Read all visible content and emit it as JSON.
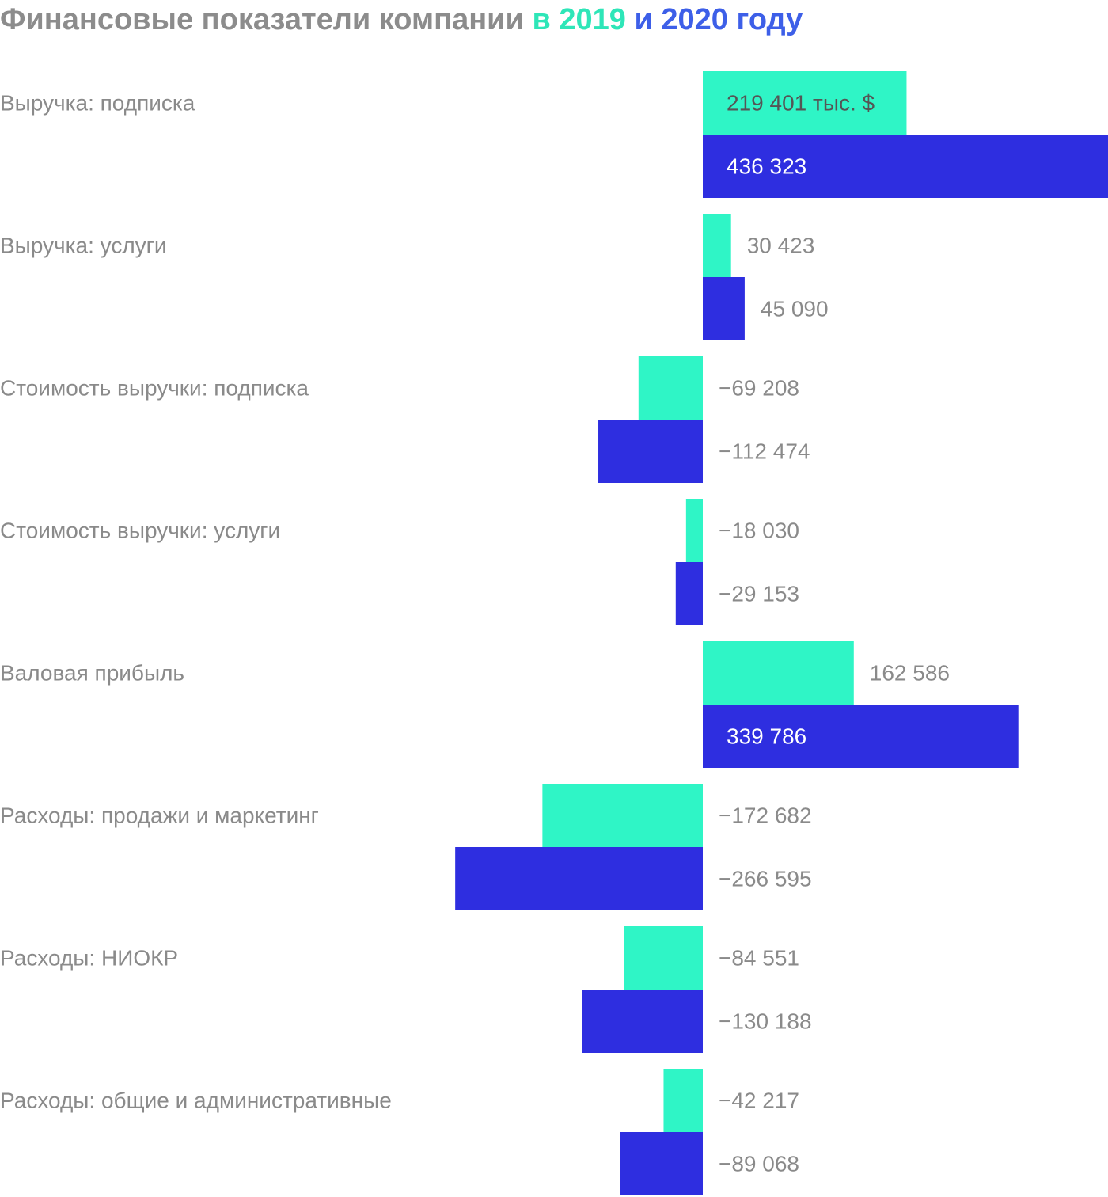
{
  "title": {
    "main": "Финансовые показатели компании",
    "part_y1": "в 2019",
    "part_and": "и",
    "part_y2": "2020 году"
  },
  "colors": {
    "y2019": "#2ff5c6",
    "y2020": "#2e2ee0",
    "title_gray": "#8c8c8c",
    "label_gray": "#8a8a8a",
    "label_dark": "#555555",
    "label_white": "#ffffff"
  },
  "chart_data": {
    "type": "bar",
    "orientation": "horizontal",
    "unit_label": "тыс. $",
    "categories": [
      "Выручка: подписка",
      "Выручка: услуги",
      "Стоимость выручки: подписка",
      "Стоимость выручки: услуги",
      "Валовая прибыль",
      "Расходы: продажи и маркетинг",
      "Расходы: НИОКР",
      "Расходы: общие и административные"
    ],
    "series": [
      {
        "values": [
          219401,
          30423,
          -69208,
          -18030,
          162586,
          -172682,
          -84551,
          -42217
        ],
        "labels": [
          "219 401 тыс. $",
          "30 423",
          "−69 208",
          "−18 030",
          "162 586",
          "−172 682",
          "−84 551",
          "−42 217"
        ]
      },
      {
        "values": [
          436323,
          45090,
          -112474,
          -29153,
          339786,
          -266595,
          -130188,
          -89068
        ],
        "labels": [
          "436 323",
          "45 090",
          "−112 474",
          "−29 153",
          "339 786",
          "−266 595",
          "−130 188",
          "−89 068"
        ]
      }
    ],
    "grid": false,
    "legend": "none"
  }
}
